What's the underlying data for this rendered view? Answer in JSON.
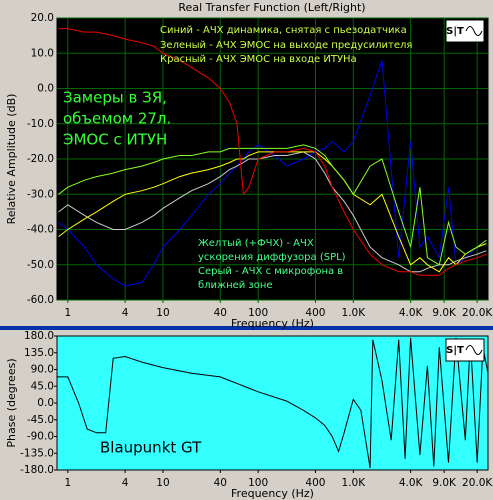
{
  "chart_data": [
    {
      "type": "line",
      "title": "Real Transfer Function (Left/Right)",
      "xlabel": "Frequency (Hz)",
      "ylabel": "Relative Amplitude (dB)",
      "log_x": true,
      "grid": true,
      "grid_color": "#006600",
      "background": "#000000",
      "xlim": [
        0.77,
        26000
      ],
      "ylim": [
        -60,
        20
      ],
      "xticks": [
        1,
        4,
        10,
        40,
        100,
        400,
        {
          "value": 1000,
          "label": "1.0K"
        },
        {
          "value": 4000,
          "label": "4.0K"
        },
        {
          "value": 9000,
          "label": "9.0K"
        },
        {
          "value": 20000,
          "label": "20.0K"
        }
      ],
      "yticks": [
        {
          "value": 20,
          "label": "20.0"
        },
        {
          "value": 10,
          "label": "10.0"
        },
        {
          "value": 0,
          "label": "0.0"
        },
        {
          "value": -10,
          "label": "-10.0"
        },
        {
          "value": -20,
          "label": "-20.0"
        },
        {
          "value": -30,
          "label": "-30.0"
        },
        {
          "value": -40,
          "label": "-40.0"
        },
        {
          "value": -50,
          "label": "-50.0"
        },
        {
          "value": -60,
          "label": "-60.0"
        }
      ],
      "x": [
        0.8,
        1,
        1.5,
        2,
        3,
        4,
        6,
        8,
        10,
        15,
        20,
        30,
        40,
        50,
        60,
        70,
        80,
        100,
        150,
        200,
        300,
        400,
        500,
        600,
        800,
        1000,
        1500,
        2000,
        3000,
        4000,
        5000,
        6000,
        8000,
        10000,
        12000,
        15000,
        20000,
        25000
      ],
      "series": [
        {
          "color": "#0000ee",
          "values": [
            -38,
            -40,
            -45,
            -50,
            -54,
            -56,
            -55,
            -50,
            -45,
            -40,
            -36,
            -30,
            -27,
            -24,
            -22,
            -20,
            -18,
            -16,
            -19,
            -22,
            -20,
            -18,
            -17,
            -15,
            -18,
            -15,
            -2,
            8,
            -48,
            -15,
            -45,
            -42,
            -48,
            -28,
            -50,
            -48,
            -45,
            -43
          ]
        },
        {
          "color": "#cccccc",
          "values": [
            -35,
            -33,
            -36,
            -38,
            -40,
            -40,
            -38,
            -36,
            -34,
            -31,
            -29,
            -27,
            -25,
            -23,
            -22,
            -21,
            -20,
            -20,
            -19,
            -19,
            -18,
            -20,
            -24,
            -28,
            -32,
            -36,
            -45,
            -48,
            -50,
            -52,
            -52,
            -51,
            -50,
            -50,
            -49,
            -48,
            -47,
            -46
          ]
        },
        {
          "color": "#ffff00",
          "values": [
            -42,
            -40,
            -37,
            -35,
            -32,
            -30,
            -29,
            -28,
            -27,
            -25,
            -24,
            -23,
            -22,
            -21,
            -20,
            -20,
            -19,
            -18,
            -18,
            -18,
            -18,
            -18,
            -20,
            -22,
            -26,
            -30,
            -33,
            -30,
            -42,
            -50,
            -48,
            -50,
            -52,
            -48,
            -50,
            -47,
            -45,
            -44
          ]
        },
        {
          "color": "#88ff22",
          "values": [
            -30,
            -28,
            -26,
            -25,
            -24,
            -23,
            -22,
            -21,
            -20,
            -19,
            -19,
            -18,
            -18,
            -17,
            -17,
            -17,
            -17,
            -17,
            -17,
            -17,
            -16,
            -17,
            -19,
            -22,
            -26,
            -30,
            -22,
            -20,
            -35,
            -45,
            -28,
            -48,
            -50,
            -38,
            -45,
            -47,
            -45,
            -43
          ]
        },
        {
          "color": "#ee0000",
          "values": [
            17,
            17,
            16,
            16,
            15,
            14,
            13,
            12,
            10,
            8,
            6,
            3,
            0,
            -4,
            -10,
            -30,
            -28,
            -20,
            -18,
            -18,
            -17,
            -18,
            -22,
            -28,
            -35,
            -40,
            -47,
            -50,
            -52,
            -52,
            -53,
            -53,
            -53,
            -51,
            -50,
            -49,
            -48,
            -47
          ]
        }
      ],
      "annotations": [
        {
          "text": "Синий - АЧХ динамика, снятая с пьезодатчика",
          "color": "#ccff44"
        },
        {
          "text": "Зеленый - АЧХ ЭМОС на выходе предусилителя",
          "color": "#ccff44"
        },
        {
          "text": "Красный - АЧХ ЭМОС на входе ИТУНа",
          "color": "#ccff44"
        },
        {
          "text": "Замеры в ЗЯ,",
          "color": "#33ff33"
        },
        {
          "text": "объемом 27л.",
          "color": "#33ff33"
        },
        {
          "text": "ЭМОС с ИТУН",
          "color": "#33ff33"
        },
        {
          "text": "Желтый (+ФЧХ) - АЧХ",
          "color": "#44ff88"
        },
        {
          "text": "ускорения диффузора (SPL)",
          "color": "#44ff88"
        },
        {
          "text": "Серый - АЧХ с микрофона в",
          "color": "#44ff88"
        },
        {
          "text": "ближней зоне",
          "color": "#44ff88"
        }
      ]
    },
    {
      "type": "line",
      "xlabel": "Frequency (Hz)",
      "ylabel": "Phase (degrees)",
      "log_x": true,
      "grid": false,
      "background": "#33ffff",
      "xlim": [
        0.77,
        26000
      ],
      "ylim": [
        -180,
        180
      ],
      "xticks": [
        1,
        4,
        10,
        40,
        100,
        400,
        {
          "value": 1000,
          "label": "1.0K"
        },
        {
          "value": 4000,
          "label": "4.0K"
        },
        {
          "value": 9000,
          "label": "9.0K"
        },
        {
          "value": 20000,
          "label": "20.0K"
        }
      ],
      "yticks": [
        {
          "value": 180,
          "label": "180.0"
        },
        {
          "value": 135,
          "label": "135.0"
        },
        {
          "value": 90,
          "label": "90.0"
        },
        {
          "value": 45,
          "label": "45.0"
        },
        {
          "value": 0,
          "label": "0.0"
        },
        {
          "value": -45,
          "label": "-45.0"
        },
        {
          "value": -90,
          "label": "-90.0"
        },
        {
          "value": -135,
          "label": "-135.0"
        },
        {
          "value": -180,
          "label": "-180.0"
        }
      ],
      "x": [
        0.77,
        1,
        1.3,
        1.6,
        2,
        2.5,
        3,
        4,
        6,
        10,
        20,
        40,
        100,
        200,
        300,
        400,
        500,
        600,
        700,
        800,
        1000,
        1200,
        1500,
        1600,
        2000,
        2500,
        3000,
        3500,
        4000,
        5000,
        6000,
        7000,
        8000,
        10000,
        12000,
        15000,
        17000,
        20000,
        23000,
        26000
      ],
      "series": [
        {
          "color": "#000000",
          "values": [
            70,
            70,
            0,
            -70,
            -80,
            -80,
            120,
            125,
            110,
            95,
            80,
            70,
            30,
            5,
            -20,
            -40,
            -60,
            -90,
            -130,
            -80,
            10,
            -20,
            -175,
            170,
            60,
            -100,
            170,
            -150,
            175,
            -140,
            100,
            -170,
            150,
            -160,
            175,
            -100,
            170,
            -160,
            150,
            80
          ]
        }
      ],
      "annotations": [
        {
          "text": "Blaupunkt GT",
          "color": "#000000"
        }
      ]
    }
  ]
}
